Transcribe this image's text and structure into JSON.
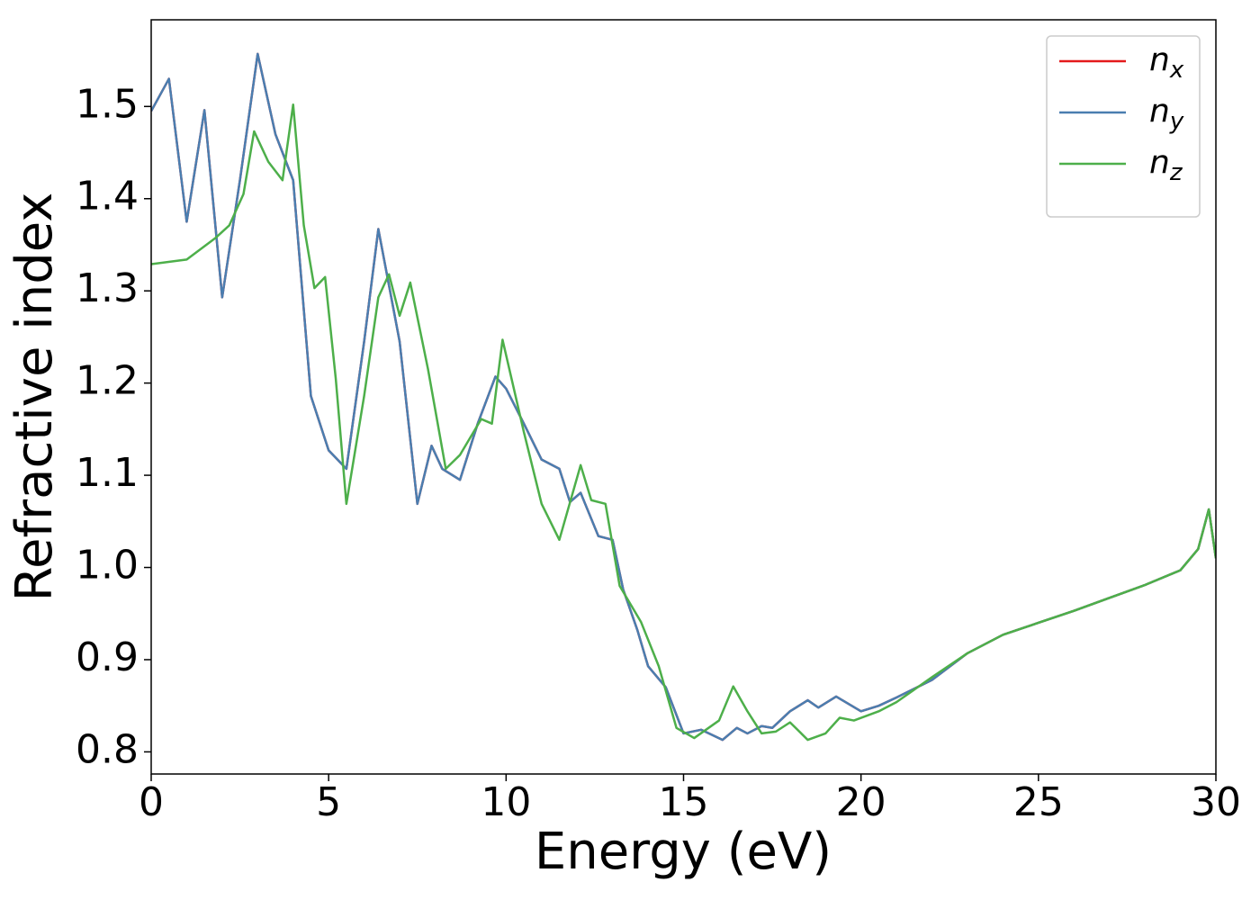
{
  "chart_data": {
    "type": "line",
    "xlabel": "Energy (eV)",
    "ylabel": "Refractive index",
    "xlim": [
      0,
      30
    ],
    "xticks": [
      0,
      5,
      10,
      15,
      20,
      25,
      30
    ],
    "ylim": [
      0.776,
      1.594
    ],
    "yticks": [
      0.8,
      0.9,
      1.0,
      1.1,
      1.2,
      1.3,
      1.4,
      1.5
    ],
    "legend": "upper right",
    "grid": false,
    "series": [
      {
        "name": "n_x",
        "color": "#e41a1c",
        "x": [
          0,
          0.5,
          1.0,
          1.5,
          2.0,
          2.5,
          3.0,
          3.5,
          4.0,
          4.5,
          5.0,
          5.5,
          6.0,
          6.4,
          7.0,
          7.5,
          7.9,
          8.2,
          8.7,
          9.2,
          9.7,
          10.0,
          10.5,
          11.0,
          11.5,
          11.8,
          12.1,
          12.6,
          13.0,
          13.3,
          13.7,
          14.0,
          14.5,
          15.0,
          15.5,
          16.1,
          16.5,
          16.8,
          17.2,
          17.5,
          18.0,
          18.5,
          18.8,
          19.3,
          20.0,
          20.5,
          21.0,
          22.0,
          23.0,
          24.0,
          25.0,
          26.0,
          27.0,
          28.0,
          29.0,
          29.5,
          29.8,
          30
        ],
        "values": [
          1.495,
          1.53,
          1.375,
          1.496,
          1.293,
          1.42,
          1.557,
          1.47,
          1.42,
          1.186,
          1.127,
          1.107,
          1.245,
          1.367,
          1.245,
          1.069,
          1.132,
          1.107,
          1.095,
          1.156,
          1.207,
          1.194,
          1.156,
          1.117,
          1.107,
          1.071,
          1.081,
          1.034,
          1.03,
          0.976,
          0.932,
          0.893,
          0.87,
          0.82,
          0.824,
          0.813,
          0.826,
          0.82,
          0.828,
          0.826,
          0.844,
          0.856,
          0.848,
          0.86,
          0.844,
          0.85,
          0.859,
          0.878,
          0.907,
          0.927,
          0.94,
          0.953,
          0.967,
          0.981,
          0.997,
          1.02,
          1.063,
          1.01
        ]
      },
      {
        "name": "n_y",
        "color": "#4a7eb0",
        "x": [
          0,
          0.5,
          1.0,
          1.5,
          2.0,
          2.5,
          3.0,
          3.5,
          4.0,
          4.5,
          5.0,
          5.5,
          6.0,
          6.4,
          7.0,
          7.5,
          7.9,
          8.2,
          8.7,
          9.2,
          9.7,
          10.0,
          10.5,
          11.0,
          11.5,
          11.8,
          12.1,
          12.6,
          13.0,
          13.3,
          13.7,
          14.0,
          14.5,
          15.0,
          15.5,
          16.1,
          16.5,
          16.8,
          17.2,
          17.5,
          18.0,
          18.5,
          18.8,
          19.3,
          20.0,
          20.5,
          21.0,
          22.0,
          23.0,
          24.0,
          25.0,
          26.0,
          27.0,
          28.0,
          29.0,
          29.5,
          29.8,
          30
        ],
        "values": [
          1.495,
          1.53,
          1.375,
          1.496,
          1.293,
          1.42,
          1.557,
          1.47,
          1.42,
          1.186,
          1.127,
          1.107,
          1.245,
          1.367,
          1.245,
          1.069,
          1.132,
          1.107,
          1.095,
          1.156,
          1.207,
          1.194,
          1.156,
          1.117,
          1.107,
          1.071,
          1.081,
          1.034,
          1.03,
          0.976,
          0.932,
          0.893,
          0.87,
          0.82,
          0.824,
          0.813,
          0.826,
          0.82,
          0.828,
          0.826,
          0.844,
          0.856,
          0.848,
          0.86,
          0.844,
          0.85,
          0.859,
          0.878,
          0.907,
          0.927,
          0.94,
          0.953,
          0.967,
          0.981,
          0.997,
          1.02,
          1.063,
          1.01
        ]
      },
      {
        "name": "n_z",
        "color": "#4daf4a",
        "x": [
          0,
          1.0,
          1.8,
          2.2,
          2.6,
          2.9,
          3.3,
          3.7,
          4.0,
          4.3,
          4.6,
          4.9,
          5.2,
          5.5,
          6.0,
          6.4,
          6.7,
          7.0,
          7.3,
          7.8,
          8.3,
          8.7,
          9.3,
          9.6,
          9.9,
          10.5,
          11.0,
          11.5,
          12.1,
          12.4,
          12.8,
          13.2,
          13.8,
          14.3,
          14.8,
          15.3,
          16.0,
          16.4,
          16.8,
          17.2,
          17.6,
          18.0,
          18.5,
          19.0,
          19.4,
          19.8,
          20.5,
          21.0,
          22.0,
          23.0,
          24.0,
          25.0,
          26.0,
          27.0,
          28.0,
          29.0,
          29.5,
          29.8,
          30
        ],
        "values": [
          1.329,
          1.334,
          1.357,
          1.371,
          1.405,
          1.473,
          1.44,
          1.42,
          1.502,
          1.371,
          1.303,
          1.315,
          1.205,
          1.069,
          1.186,
          1.293,
          1.318,
          1.273,
          1.309,
          1.215,
          1.107,
          1.122,
          1.161,
          1.156,
          1.247,
          1.147,
          1.069,
          1.03,
          1.111,
          1.073,
          1.069,
          0.98,
          0.941,
          0.893,
          0.826,
          0.815,
          0.834,
          0.871,
          0.844,
          0.82,
          0.822,
          0.832,
          0.813,
          0.82,
          0.837,
          0.834,
          0.844,
          0.854,
          0.881,
          0.907,
          0.927,
          0.94,
          0.953,
          0.967,
          0.981,
          0.997,
          1.02,
          1.063,
          1.01
        ]
      }
    ]
  }
}
